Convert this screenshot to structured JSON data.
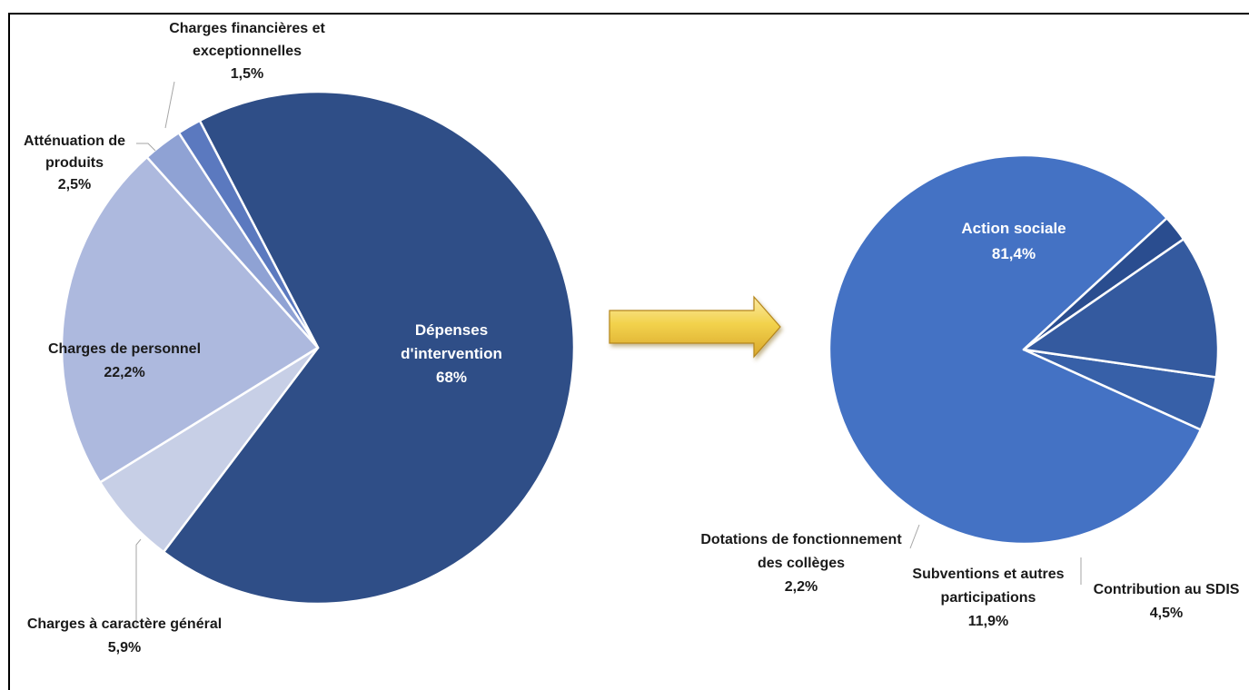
{
  "chart_data": [
    {
      "type": "pie",
      "slices": [
        {
          "label": "Dépenses d'intervention",
          "value": 68,
          "display": "68%",
          "label_lines": [
            "Dépenses",
            "d'intervention"
          ],
          "color": "#2f4e87"
        },
        {
          "label": "Charges à caractère général",
          "value": 5.9,
          "display": "5,9%",
          "label_lines": [
            "Charges à caractère général"
          ],
          "color": "#c7cfe6"
        },
        {
          "label": "Charges de personnel",
          "value": 22.2,
          "display": "22,2%",
          "label_lines": [
            "Charges de personnel"
          ],
          "color": "#adb9de"
        },
        {
          "label": "Atténuation de produits",
          "value": 2.5,
          "display": "2,5%",
          "label_lines": [
            "Atténuation de",
            "produits"
          ],
          "color": "#8fa2d4"
        },
        {
          "label": "Charges financières et exceptionnelles",
          "value": 1.5,
          "display": "1,5%",
          "label_lines": [
            "Charges financières et",
            "exceptionnelles"
          ],
          "color": "#5b79bf"
        }
      ]
    },
    {
      "type": "pie",
      "slices": [
        {
          "label": "Contribution au SDIS",
          "value": 4.5,
          "display": "4,5%",
          "label_lines": [
            "Contribution au SDIS"
          ],
          "color": "#3760a8"
        },
        {
          "label": "Action sociale",
          "value": 81.4,
          "display": "81,4%",
          "label_lines": [
            "Action sociale"
          ],
          "color": "#4472c4"
        },
        {
          "label": "Dotations de fonctionnement des collèges",
          "value": 2.2,
          "display": "2,2%",
          "label_lines": [
            "Dotations de fonctionnement",
            "des collèges"
          ],
          "color": "#2a4d8f"
        },
        {
          "label": "Subventions et autres participations",
          "value": 11.9,
          "display": "11,9%",
          "label_lines": [
            "Subventions et autres",
            "participations"
          ],
          "color": "#345a9f"
        }
      ]
    }
  ],
  "arrow": {
    "fill_color": "#f2d24c",
    "stroke_color": "#b5861a"
  }
}
